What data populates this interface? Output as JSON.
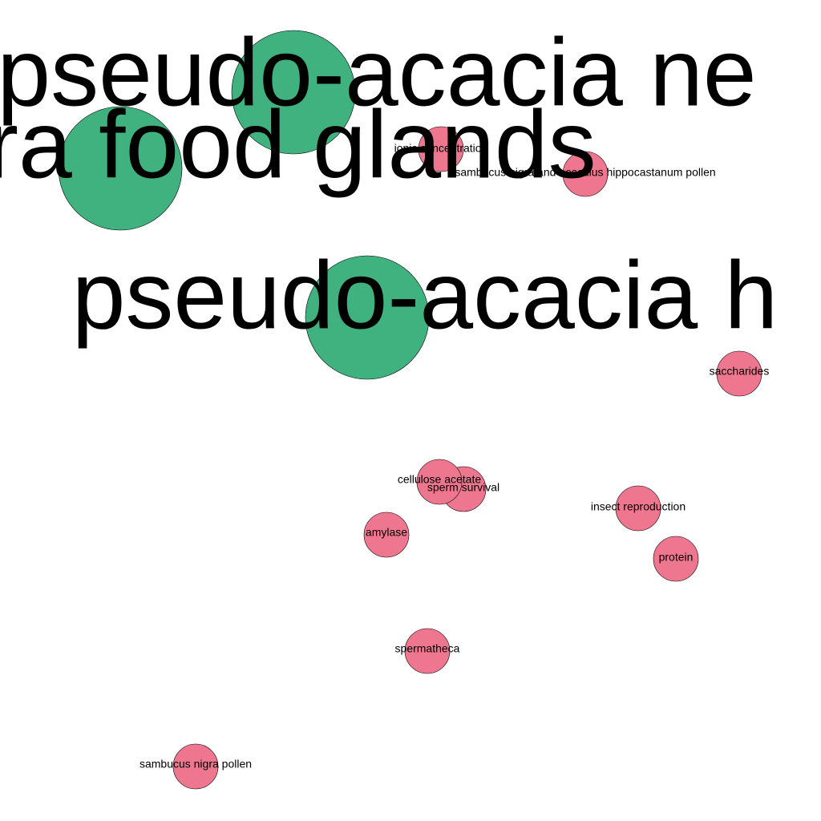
{
  "graph": {
    "colors": {
      "major": "#3fb27f",
      "minor": "#ee778f",
      "stroke": "#000000",
      "text": "#000000",
      "background": "#ffffff"
    },
    "nodes": [
      {
        "id": "n1",
        "label": "pseudo-acacia ne",
        "group": "major"
      },
      {
        "id": "n2",
        "label": "era food glands",
        "group": "major"
      },
      {
        "id": "n3",
        "label": "pseudo-acacia h",
        "group": "major"
      },
      {
        "id": "n4",
        "label": "ionic concentration",
        "group": "minor"
      },
      {
        "id": "n5",
        "label": "sambucus nigra and aesculus hippocastanum pollen",
        "group": "minor"
      },
      {
        "id": "n6",
        "label": "saccharides",
        "group": "minor"
      },
      {
        "id": "n7",
        "label": "sperm survival",
        "group": "minor"
      },
      {
        "id": "n8",
        "label": "cellulose acetate",
        "group": "minor"
      },
      {
        "id": "n9",
        "label": "insect reproduction",
        "group": "minor"
      },
      {
        "id": "n10",
        "label": "amylase",
        "group": "minor"
      },
      {
        "id": "n11",
        "label": "protein",
        "group": "minor"
      },
      {
        "id": "n12",
        "label": "spermatheca",
        "group": "minor"
      },
      {
        "id": "n13",
        "label": "sambucus nigra pollen",
        "group": "minor"
      }
    ]
  }
}
